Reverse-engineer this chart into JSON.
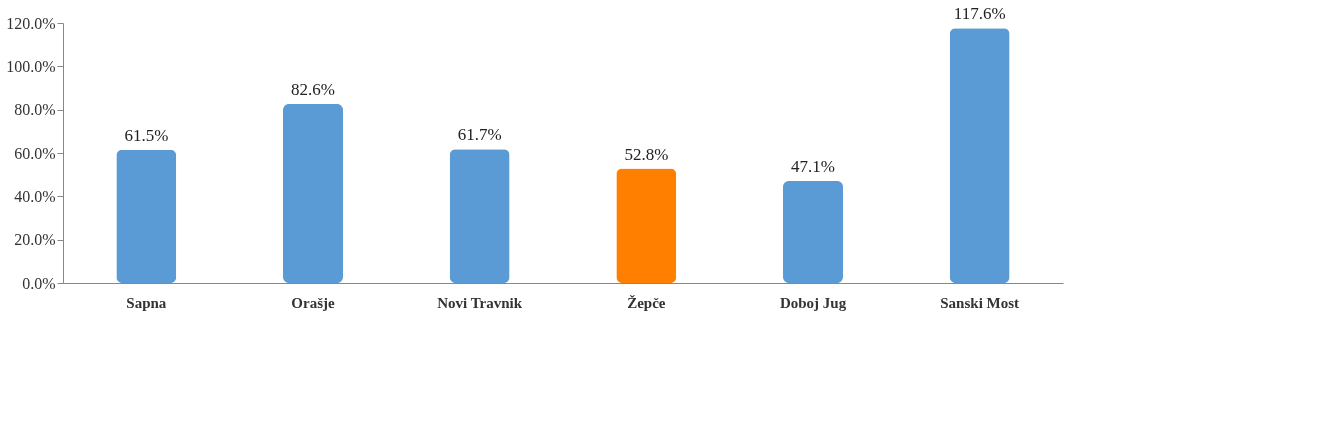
{
  "chart_data": {
    "type": "bar",
    "categories": [
      "Sapna",
      "Orašje",
      "Novi Travnik",
      "Žepče",
      "Doboj Jug",
      "Sanski Most"
    ],
    "values": [
      61.5,
      82.6,
      61.7,
      52.8,
      47.1,
      117.6
    ],
    "colors": [
      "#5b9bd5",
      "#5b9bd5",
      "#5b9bd5",
      "#ff7f00",
      "#5b9bd5",
      "#5b9bd5"
    ],
    "value_labels": [
      "61.5%",
      "82.6%",
      "61.7%",
      "52.8%",
      "47.1%",
      "117.6%"
    ],
    "ylim": [
      0,
      120
    ],
    "yticks": [
      {
        "value": 0,
        "label": "0.0%"
      },
      {
        "value": 20,
        "label": "20.0%"
      },
      {
        "value": 40,
        "label": "40.0%"
      },
      {
        "value": 60,
        "label": "60.0%"
      },
      {
        "value": 80,
        "label": "80.0%"
      },
      {
        "value": 100,
        "label": "100.0%"
      },
      {
        "value": 120,
        "label": "120.0%"
      }
    ],
    "grid": false
  }
}
